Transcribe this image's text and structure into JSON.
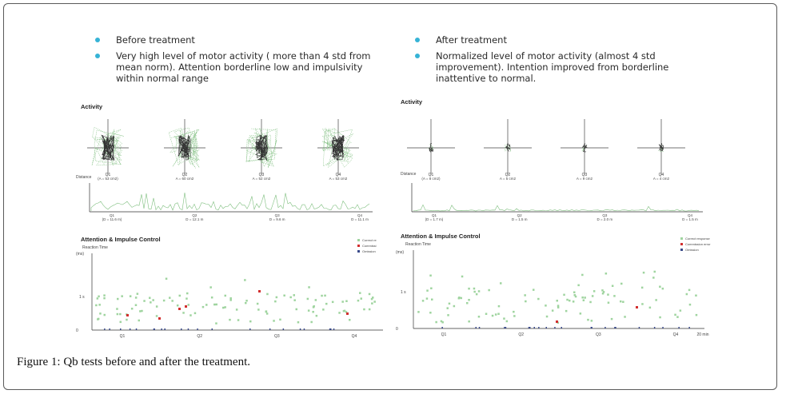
{
  "caption": "Figure 1: Qb tests before and after the treatment.",
  "panels": {
    "before": {
      "bullets": [
        "Before treatment",
        "Very high level of motor activity ( more than 4 std from mean norm). Attention borderline low and impulsivity within normal range"
      ],
      "activity_title": "Activity",
      "distance_label": "Distance",
      "quadrants": [
        {
          "label": "Q1",
          "area": "(A = 53 cm2)",
          "distance": "(D = 11.6 m)"
        },
        {
          "label": "Q2",
          "area": "A = 60 cm2",
          "distance": "D = 12.1 m"
        },
        {
          "label": "Q3",
          "area": "A = 52 cm2",
          "distance": "D = 9.6 m"
        },
        {
          "label": "Q4",
          "area": "A = 53 cm2",
          "distance": "D = 11.1 m"
        }
      ],
      "attention_title": "Attention & Impulse Control",
      "reaction_label": "Reaction Time",
      "y_top": "(ms)",
      "y_mid": "1 s",
      "y_bottom": "0",
      "legend": [
        "Correct re",
        "Commissi",
        "Omission"
      ],
      "x_labels": [
        "Q1",
        "Q2",
        "Q3",
        "Q4"
      ]
    },
    "after": {
      "bullets": [
        "After treatment",
        "Normalized level of motor activity (almost 4 std improvement). Intention improved from borderline inattentive to normal."
      ],
      "activity_title": "Activity",
      "distance_label": "Distance",
      "quadrants": [
        {
          "label": "Q1",
          "area": "(A = 8 cm2)",
          "distance": "(D = 1.7 m)"
        },
        {
          "label": "Q2",
          "area": "A = 5 cm2",
          "distance": "D = 1.5 m"
        },
        {
          "label": "Q3",
          "area": "A = 9 cm2",
          "distance": "D = 2.0 m"
        },
        {
          "label": "Q4",
          "area": "A = 4 cm2",
          "distance": "D = 1.5 m"
        }
      ],
      "attention_title": "Attention & Impulse Control",
      "reaction_label": "Reaction Time",
      "y_top": "(ms)",
      "y_mid": "1 s",
      "y_bottom": "0",
      "legend": [
        "Correct response",
        "Commission error",
        "Omission"
      ],
      "x_labels": [
        "Q1",
        "Q2",
        "Q3",
        "Q4",
        "20 min"
      ]
    }
  },
  "colors": {
    "bullet": "#36b3d6",
    "trace": "#7fbf7f",
    "correct": "#9fd49f",
    "commission": "#d22f2f",
    "omission": "#3a4a8a",
    "axis": "#333333"
  }
}
